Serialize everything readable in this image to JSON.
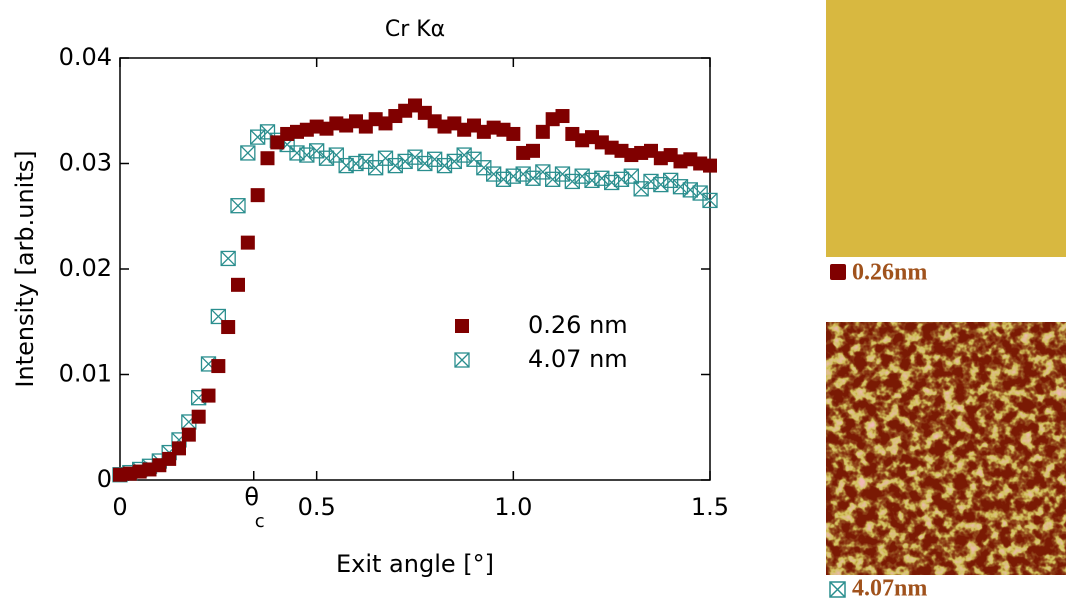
{
  "chart_data": {
    "type": "scatter",
    "title": "Cr Kα",
    "x_label": "Exit angle [°]",
    "y_label": "Intensity [arb.units]",
    "xlim": [
      0,
      1.5
    ],
    "ylim": [
      0,
      0.04
    ],
    "xticks": [
      0,
      0.5,
      {
        "value": 1,
        "label": "1.0"
      },
      1.5
    ],
    "yticks": [
      0,
      0.01,
      0.02,
      0.03,
      0.04
    ],
    "annotations": [
      {
        "text": "θ",
        "subscript": "c",
        "x": 0.34
      }
    ],
    "x": [
      0,
      0.025,
      0.05,
      0.075,
      0.1,
      0.125,
      0.15,
      0.175,
      0.2,
      0.225,
      0.25,
      0.275,
      0.3,
      0.325,
      0.35,
      0.375,
      0.4,
      0.425,
      0.45,
      0.475,
      0.5,
      0.525,
      0.55,
      0.575,
      0.6,
      0.625,
      0.65,
      0.675,
      0.7,
      0.725,
      0.75,
      0.775,
      0.8,
      0.825,
      0.85,
      0.875,
      0.9,
      0.925,
      0.95,
      0.975,
      1,
      1.025,
      1.05,
      1.075,
      1.1,
      1.125,
      1.15,
      1.175,
      1.2,
      1.225,
      1.25,
      1.275,
      1.3,
      1.325,
      1.35,
      1.375,
      1.4,
      1.425,
      1.45,
      1.475,
      1.5
    ],
    "series": [
      {
        "name": "0.26 nm",
        "color": "#800000",
        "marker": "filled-square",
        "values": [
          0.0005,
          0.0006,
          0.0008,
          0.001,
          0.0014,
          0.002,
          0.003,
          0.0043,
          0.006,
          0.008,
          0.0108,
          0.0145,
          0.0185,
          0.0225,
          0.027,
          0.0305,
          0.032,
          0.0328,
          0.033,
          0.0332,
          0.0335,
          0.0333,
          0.0338,
          0.0336,
          0.034,
          0.0335,
          0.0342,
          0.0338,
          0.0345,
          0.035,
          0.0355,
          0.0348,
          0.034,
          0.0335,
          0.0338,
          0.0332,
          0.0336,
          0.033,
          0.0334,
          0.0332,
          0.0328,
          0.031,
          0.0312,
          0.033,
          0.0342,
          0.0345,
          0.0328,
          0.0322,
          0.0325,
          0.032,
          0.0315,
          0.0312,
          0.0308,
          0.031,
          0.0312,
          0.0305,
          0.0308,
          0.0302,
          0.0304,
          0.03,
          0.0298
        ]
      },
      {
        "name": "4.07 nm",
        "color": "#2a8e8e",
        "marker": "crossed-square",
        "values": [
          0.0005,
          0.0007,
          0.001,
          0.0013,
          0.0018,
          0.0026,
          0.0038,
          0.0055,
          0.0078,
          0.011,
          0.0155,
          0.021,
          0.026,
          0.031,
          0.0325,
          0.033,
          0.0322,
          0.0318,
          0.031,
          0.0308,
          0.0312,
          0.0305,
          0.0308,
          0.0298,
          0.03,
          0.0302,
          0.0296,
          0.0305,
          0.0298,
          0.0302,
          0.0306,
          0.03,
          0.0304,
          0.0298,
          0.0302,
          0.0308,
          0.0304,
          0.0296,
          0.029,
          0.0285,
          0.0288,
          0.029,
          0.0286,
          0.0292,
          0.0285,
          0.029,
          0.0283,
          0.0288,
          0.0284,
          0.0286,
          0.0282,
          0.0285,
          0.0288,
          0.0276,
          0.0283,
          0.028,
          0.0284,
          0.0278,
          0.0275,
          0.0272,
          0.0265
        ]
      }
    ]
  },
  "images": [
    {
      "caption": "0.26nm"
    },
    {
      "caption": "4.07nm"
    }
  ]
}
